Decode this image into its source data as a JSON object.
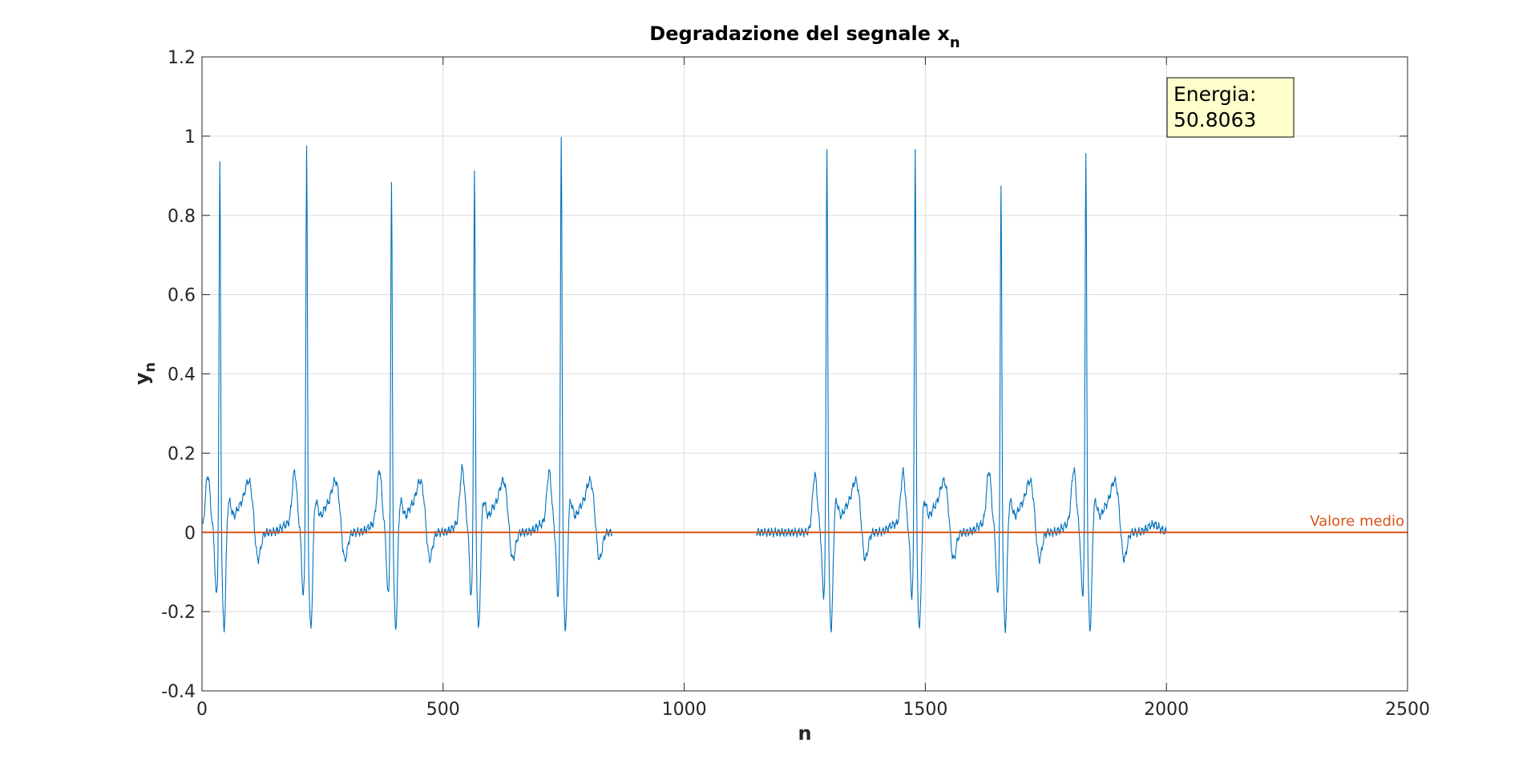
{
  "chart_data": {
    "type": "line",
    "title": "Degradazione del segnale x",
    "title_subscript": "n",
    "xlabel": "n",
    "ylabel": "y",
    "ylabel_subscript": "n",
    "xlim": [
      0,
      2500
    ],
    "ylim": [
      -0.4,
      1.2
    ],
    "xticks": [
      0,
      500,
      1000,
      1500,
      2000,
      2500
    ],
    "yticks": [
      -0.4,
      -0.2,
      0,
      0.2,
      0.4,
      0.6,
      0.8,
      1,
      1.2
    ],
    "xtick_labels": [
      "0",
      "500",
      "1000",
      "1500",
      "2000",
      "2500"
    ],
    "ytick_labels": [
      "-0.4",
      "-0.2",
      "0",
      "0.2",
      "0.4",
      "0.6",
      "0.8",
      "1",
      "1.2"
    ],
    "grid": true,
    "colors": {
      "signal": "#0072BD",
      "mean": "#D95319"
    },
    "series": [
      {
        "type": "ecg-like",
        "segments": [
          [
            1,
            850
          ],
          [
            1150,
            2000
          ]
        ],
        "beats": [
          {
            "n": 37,
            "peak": 0.95
          },
          {
            "n": 217,
            "peak": 0.99
          },
          {
            "n": 393,
            "peak": 0.9
          },
          {
            "n": 565,
            "peak": 0.94
          },
          {
            "n": 745,
            "peak": 1.03
          },
          {
            "n": 1296,
            "peak": 0.99
          },
          {
            "n": 1479,
            "peak": 0.99
          },
          {
            "n": 1657,
            "peak": 0.89
          },
          {
            "n": 1833,
            "peak": 0.98
          }
        ],
        "p_wave": 0.145,
        "q_dip": -0.16,
        "s_dip": -0.27,
        "t_wave": 0.11
      },
      {
        "name": "Valore medio",
        "type": "hline",
        "y": 0
      }
    ],
    "annotation": {
      "label": "Energia:",
      "value": "50.8063"
    }
  }
}
